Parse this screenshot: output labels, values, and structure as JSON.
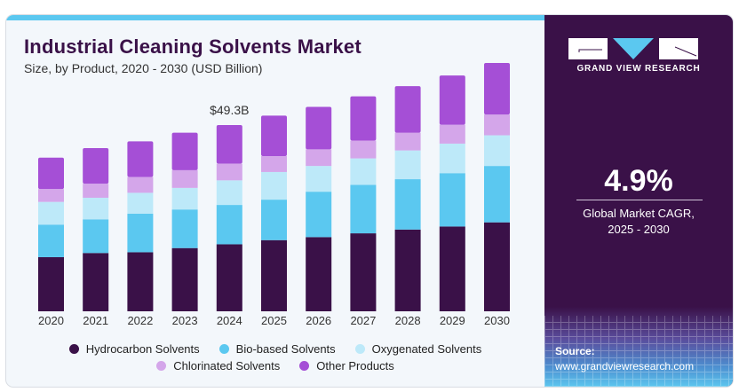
{
  "header": {
    "title": "Industrial Cleaning Solvents Market",
    "subtitle": "Size, by Product, 2020 - 2030 (USD Billion)"
  },
  "sidebar": {
    "brand": "GRAND VIEW RESEARCH",
    "cagr_value": "4.9%",
    "cagr_label_line1": "Global Market CAGR,",
    "cagr_label_line2": "2025 - 2030",
    "source_label": "Source:",
    "source_url": "www.grandviewresearch.com"
  },
  "colors": {
    "title": "#3a1148",
    "accent_bar": "#5bc8f0",
    "sidebar_bg": "#3a1148",
    "logo_triangle": "#5bc8f0"
  },
  "chart_data": {
    "type": "bar",
    "stacked": true,
    "title": "Industrial Cleaning Solvents Market",
    "subtitle": "Size, by Product, 2020 - 2030 (USD Billion)",
    "xlabel": "",
    "ylabel": "",
    "categories": [
      "2020",
      "2021",
      "2022",
      "2023",
      "2024",
      "2025",
      "2026",
      "2027",
      "2028",
      "2029",
      "2030"
    ],
    "series": [
      {
        "name": "Hydrocarbon Solvents",
        "color": "#3a1148",
        "values": [
          14.3,
          15.4,
          15.6,
          16.7,
          17.7,
          18.8,
          19.6,
          20.6,
          21.6,
          22.4,
          23.5
        ]
      },
      {
        "name": "Bio-based Solvents",
        "color": "#5bc8f0",
        "values": [
          8.6,
          8.9,
          10.2,
          10.2,
          10.4,
          10.7,
          12.0,
          12.8,
          13.3,
          14.1,
          14.9
        ]
      },
      {
        "name": "Oxygenated Solvents",
        "color": "#bde9f9",
        "values": [
          6.0,
          5.7,
          5.5,
          5.7,
          6.5,
          7.3,
          6.8,
          7.0,
          7.6,
          7.8,
          8.1
        ]
      },
      {
        "name": "Chlorinated Solvents",
        "color": "#d4a6ea",
        "values": [
          3.4,
          3.7,
          4.2,
          4.7,
          4.4,
          4.2,
          4.4,
          4.7,
          4.7,
          5.0,
          5.5
        ]
      },
      {
        "name": "Other Products",
        "color": "#a54fd6",
        "values": [
          8.3,
          9.4,
          9.4,
          9.9,
          10.2,
          10.7,
          11.2,
          11.7,
          12.3,
          13.0,
          13.6
        ]
      }
    ],
    "ylim": [
      0,
      62
    ],
    "grid": false,
    "annotations": [
      {
        "category": "2024",
        "text": "$49.3B"
      }
    ],
    "legend_position": "bottom"
  }
}
